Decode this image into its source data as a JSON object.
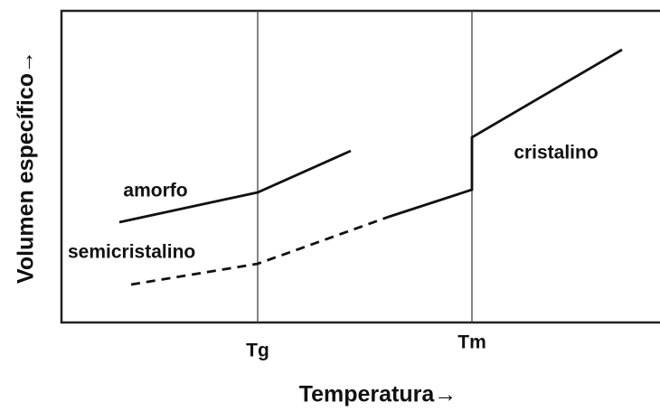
{
  "axes": {
    "y_label": "Volumen específico→",
    "x_label": "Temperatura→"
  },
  "markers": {
    "tg": "Tg",
    "tm": "Tm"
  },
  "curves": {
    "amorphous": "amorfo",
    "semicrystalline": "semicristalino",
    "crystalline": "cristalino"
  }
}
